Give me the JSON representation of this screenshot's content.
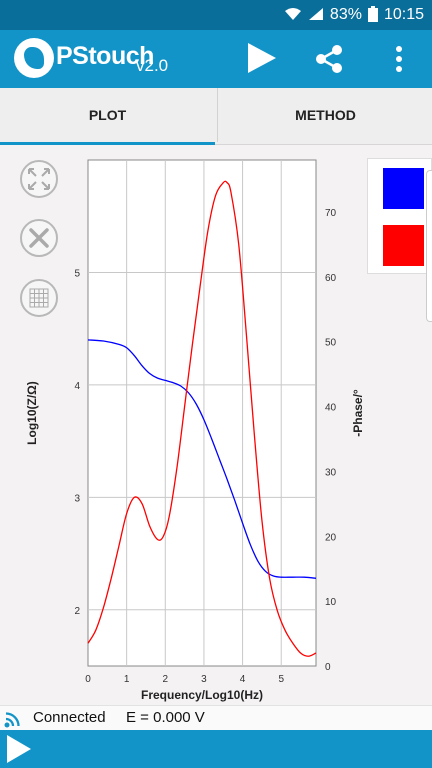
{
  "status_bar": {
    "battery": "83%",
    "time": "10:15"
  },
  "app": {
    "name": "PStouch",
    "version": "v2.0"
  },
  "tabs": [
    {
      "label": "PLOT"
    },
    {
      "label": "METHOD"
    }
  ],
  "footer": {
    "connection": "Connected",
    "potential": "E = 0.000 V"
  },
  "colors": {
    "primary": "#1394c8",
    "status_bar": "#0a6e9a",
    "series_blue": "#0000ff",
    "series_red": "#ff0000"
  },
  "icons": [
    "wifi-icon",
    "signal-icon",
    "battery-icon",
    "logo-icon",
    "play-icon",
    "share-icon",
    "more-vert-icon",
    "fit-zoom-icon",
    "wrench-icon",
    "grid-icon",
    "connection-icon"
  ],
  "chart_data": {
    "type": "line",
    "xlabel": "Frequency/Log10(Hz)",
    "ylabel": "Log10(Z/Ω)",
    "y2label": "-Phase/°",
    "xlim": [
      0,
      5.9
    ],
    "ylim": [
      1.5,
      6.0
    ],
    "y2lim": [
      0,
      78
    ],
    "x_ticks": [
      "0",
      "1",
      "2",
      "3",
      "4",
      "5"
    ],
    "y_ticks": [
      "2",
      "3",
      "4",
      "5"
    ],
    "y2_ticks": [
      "0",
      "10",
      "20",
      "30",
      "40",
      "50",
      "60",
      "70"
    ],
    "grid": true,
    "legend": "right",
    "series": [
      {
        "axis": "left",
        "color": "#0000ff",
        "x": [
          0,
          0.4,
          0.8,
          1.0,
          1.2,
          1.4,
          1.6,
          1.8,
          2.0,
          2.2,
          2.4,
          2.6,
          2.8,
          3.0,
          3.2,
          3.4,
          3.6,
          3.8,
          4.0,
          4.2,
          4.4,
          4.6,
          4.8,
          5.0,
          5.3,
          5.6,
          5.9
        ],
        "y": [
          4.4,
          4.39,
          4.36,
          4.33,
          4.26,
          4.17,
          4.1,
          4.06,
          4.04,
          4.02,
          3.99,
          3.93,
          3.83,
          3.69,
          3.52,
          3.34,
          3.16,
          2.97,
          2.77,
          2.58,
          2.43,
          2.34,
          2.3,
          2.29,
          2.29,
          2.29,
          2.28
        ]
      },
      {
        "axis": "right",
        "color": "#ff0000",
        "x": [
          0,
          0.2,
          0.4,
          0.6,
          0.8,
          1.0,
          1.2,
          1.4,
          1.6,
          1.8,
          1.95,
          2.1,
          2.3,
          2.5,
          2.7,
          2.9,
          3.1,
          3.3,
          3.5,
          3.6,
          3.7,
          3.9,
          4.1,
          4.3,
          4.5,
          4.7,
          4.9,
          5.1,
          5.3,
          5.5,
          5.7,
          5.9
        ],
        "y": [
          3.5,
          5.5,
          9.0,
          13.5,
          18.5,
          23.5,
          26.0,
          25.0,
          21.5,
          19.5,
          20.0,
          23.0,
          30.5,
          40.0,
          49.5,
          58.5,
          67.0,
          72.5,
          74.5,
          74.5,
          73.0,
          65.0,
          51.0,
          36.0,
          22.5,
          13.5,
          8.5,
          5.5,
          3.5,
          2.0,
          1.5,
          2.0
        ]
      }
    ]
  }
}
